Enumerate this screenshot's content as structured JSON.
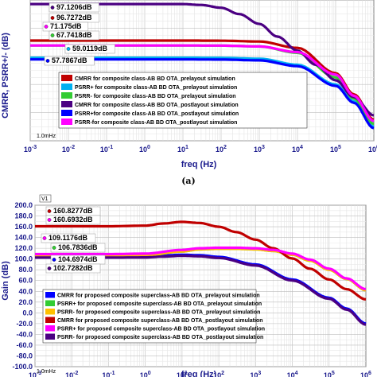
{
  "panel_a_label": "(a)",
  "chart_data": [
    {
      "type": "line",
      "panel": "a",
      "ylabel": "CMRR, PSRR+/- (dB)",
      "xlabel": "freq (Hz)",
      "xscale": "log",
      "xlim": [
        0.001,
        1000000
      ],
      "ylim": [
        0,
        100
      ],
      "grid": true,
      "legend_position": "bottom-right",
      "x_tick_exponents": [
        "-3",
        "-2",
        "-1",
        "0",
        "1",
        "2",
        "3",
        "4",
        "5",
        "6"
      ],
      "x_tick_base": "10",
      "cursor_label": "1.0mHz",
      "annotations": [
        "97.1206dB",
        "96.7272dB",
        "71.175dB",
        "67.7418dB",
        "59.0119dB",
        "57.7867dB"
      ],
      "series": [
        {
          "name": "CMRR for composite class-AB BD OTA_prelayout simulation",
          "color": "#c00000",
          "x": [
            0.001,
            1,
            10,
            100,
            1000,
            10000,
            100000,
            300000,
            1000000
          ],
          "y": [
            71.2,
            71.2,
            71.2,
            71.1,
            70.5,
            66,
            48,
            33,
            15
          ]
        },
        {
          "name": "PSRR+ for composite class-AB BD OTA_prelayout simulation",
          "color": "#00b0f0",
          "x": [
            0.001,
            1,
            10,
            100,
            1000,
            10000,
            100000,
            300000,
            1000000
          ],
          "y": [
            59.0,
            59.0,
            59.0,
            58.9,
            58.3,
            54,
            40,
            28,
            10
          ]
        },
        {
          "name": "PSRR- for composite class-AB BD OTA_prelayout simulation",
          "color": "#33cc33",
          "x": [
            0.001,
            1,
            10,
            100,
            1000,
            10000,
            100000,
            300000,
            1000000
          ],
          "y": [
            67.7,
            67.7,
            67.7,
            67.6,
            67.0,
            62.5,
            45,
            30,
            12
          ]
        },
        {
          "name": "CMRR for composite class-AB BD OTA_postlayout simulation",
          "color": "#4b0082",
          "x": [
            0.001,
            10,
            30,
            100,
            300,
            1000,
            3000,
            10000,
            30000,
            100000,
            300000,
            1000000
          ],
          "y": [
            97.1,
            97.1,
            96.5,
            94.5,
            90,
            83,
            74,
            64,
            54,
            43,
            31,
            18
          ]
        },
        {
          "name": "PSRR+for composite class-AB BD OTA_postlayout simulation",
          "color": "#0000ff",
          "x": [
            0.001,
            1,
            10,
            100,
            1000,
            10000,
            100000,
            300000,
            1000000
          ],
          "y": [
            57.8,
            57.8,
            57.8,
            57.7,
            57.1,
            53,
            39,
            27,
            9
          ]
        },
        {
          "name": "PSRR-for composite class-AB BD OTA_postlayout simulation",
          "color": "#ff00ff",
          "x": [
            0.001,
            1,
            10,
            100,
            1000,
            10000,
            100000,
            300000,
            1000000
          ],
          "y": [
            67.7,
            67.7,
            67.7,
            67.6,
            67.0,
            63,
            47,
            32,
            14
          ]
        }
      ]
    },
    {
      "type": "line",
      "panel": "b",
      "ylabel": "Gain (dB)",
      "xlabel": "freq (Hz)",
      "xscale": "log",
      "xlim": [
        0.001,
        1000000
      ],
      "ylim": [
        -100,
        200
      ],
      "grid": true,
      "legend_position": "bottom-left",
      "cursor_badge": "V1",
      "y_ticks": [
        "200.0",
        "180.0",
        "160.0",
        "140.0",
        "120.0",
        "100.0",
        "80.0",
        "60.0",
        "40.0",
        "20.0",
        "0.0",
        "-20.0",
        "-40.0",
        "-60.0",
        "-80.0",
        "-100.0"
      ],
      "y_tick_values": [
        200,
        180,
        160,
        140,
        120,
        100,
        80,
        60,
        40,
        20,
        0,
        -20,
        -40,
        -60,
        -80,
        -100
      ],
      "x_tick_exponents": [
        "-3",
        "-2",
        "-1",
        "0",
        "1",
        "2",
        "3",
        "4",
        "5",
        "6"
      ],
      "x_tick_base": "10",
      "cursor_label": "1.0mHz",
      "annotations": [
        "160.8277dB",
        "160.6932dB",
        "109.1176dB",
        "106.7836dB",
        "104.6974dB",
        "102.7282dB"
      ],
      "series": [
        {
          "name": "CMRR for proposed composite superclass-AB BD OTA_prelayout simulation",
          "color": "#0000ff",
          "x": [
            0.001,
            0.1,
            1,
            3,
            10,
            30,
            100,
            1000,
            10000,
            100000,
            300000,
            1000000
          ],
          "y": [
            104.7,
            104.7,
            105,
            106.5,
            108,
            107,
            104,
            90,
            62,
            28,
            8,
            -20
          ]
        },
        {
          "name": "PSRR+ for proposed composite superclass-AB BD OTA_prelayout simulation",
          "color": "#33cc33",
          "x": [
            0.001,
            0.1,
            1,
            10,
            30,
            100,
            300,
            1000,
            3000,
            10000,
            30000,
            100000,
            300000,
            1000000
          ],
          "y": [
            106.8,
            106.8,
            107,
            114,
            118,
            119,
            119,
            118,
            115,
            108,
            97,
            80,
            63,
            42
          ]
        },
        {
          "name": "PSRR- for proposed composite superclass-AB BD OTA_prelayout simulation",
          "color": "#ffc000",
          "x": [
            0.001,
            0.1,
            1,
            10,
            30,
            100,
            300,
            1000,
            3000,
            10000,
            30000,
            100000,
            300000,
            1000000
          ],
          "y": [
            106.8,
            106.8,
            107,
            114,
            118,
            119,
            119,
            118,
            115,
            108,
            97,
            80,
            63,
            42
          ]
        },
        {
          "name": "CMRR for proposed composite superclass-AB BD OTA_postlayout simulation",
          "color": "#c00000",
          "x": [
            0.001,
            0.1,
            1,
            3,
            10,
            30,
            100,
            300,
            1000,
            3000,
            10000,
            30000,
            100000,
            300000,
            1000000
          ],
          "y": [
            160.8,
            160.8,
            162,
            166,
            169,
            167,
            160,
            150,
            136,
            120,
            101,
            82,
            62,
            44,
            25
          ]
        },
        {
          "name": "PSRR+ for proposed composite superclass-AB BD OTA_postlayout simulation",
          "color": "#ff00ff",
          "x": [
            0.001,
            0.1,
            1,
            10,
            30,
            100,
            300,
            1000,
            3000,
            10000,
            30000,
            100000,
            300000,
            1000000
          ],
          "y": [
            109.1,
            109.1,
            110,
            117,
            120,
            121,
            121,
            120,
            117,
            110,
            99,
            82,
            64,
            44
          ]
        },
        {
          "name": "PSRR- for proposed composite superclass-AB BD OTA_postlayout simulation",
          "color": "#4b0082",
          "x": [
            0.001,
            0.1,
            1,
            3,
            10,
            30,
            100,
            1000,
            10000,
            100000,
            300000,
            1000000
          ],
          "y": [
            102.7,
            102.7,
            103,
            104.5,
            106,
            105,
            102,
            88,
            60,
            26,
            6,
            -22
          ]
        }
      ]
    }
  ]
}
